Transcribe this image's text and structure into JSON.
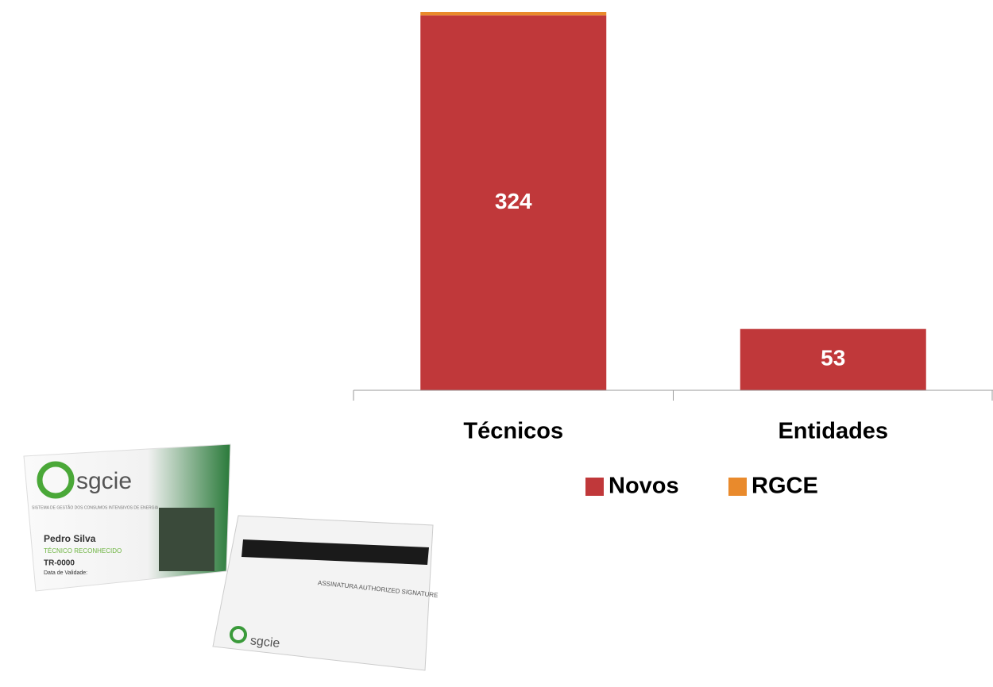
{
  "chart_data": {
    "type": "stacked-bar",
    "categories": [
      "Técnicos",
      "Entidades"
    ],
    "series": [
      {
        "name": "Novos",
        "color": "#c0383a",
        "values": [
          324,
          53
        ]
      },
      {
        "name": "RGCE",
        "color": "#e98a2c",
        "values": [
          3,
          null
        ]
      }
    ],
    "legend": "bottom"
  },
  "image": {
    "brand": "sgcie",
    "subtitle": "SISTEMA DE GESTÃO DOS CONSUMOS INTENSIVOS DE ENERGIA",
    "name": "Pedro Silva",
    "role": "TÉCNICO RECONHECIDO",
    "id": "TR-0000",
    "validity": "Data de Validade:",
    "back_brand": "sgcie",
    "signature": "ASSINATURA AUTHORIZED SIGNATURE"
  }
}
